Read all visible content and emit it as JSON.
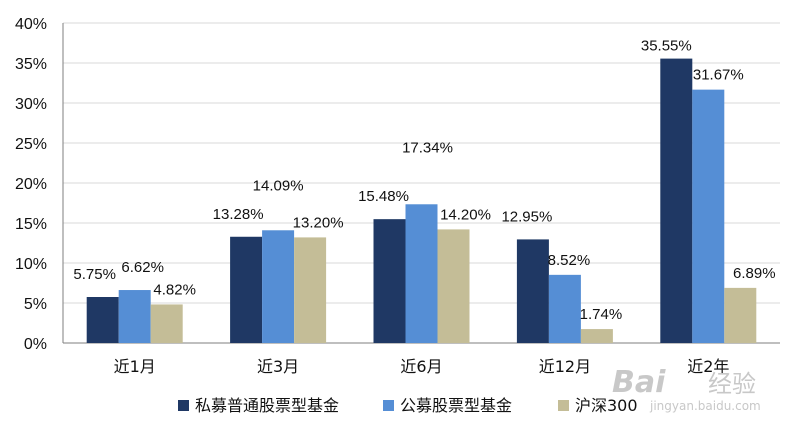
{
  "chart_data": {
    "type": "bar",
    "categories": [
      "近1月",
      "近3月",
      "近6月",
      "近12月",
      "近2年"
    ],
    "series": [
      {
        "name": "私募普通股票型基金",
        "color": "#1f3864",
        "values": [
          5.75,
          13.28,
          15.48,
          12.95,
          35.55
        ],
        "labels": [
          "5.75%",
          "13.28%",
          "15.48%",
          "12.95%",
          "35.55%"
        ]
      },
      {
        "name": "公募股票型基金",
        "color": "#558ed5",
        "values": [
          6.62,
          14.09,
          17.34,
          8.52,
          31.67
        ],
        "labels": [
          "6.62%",
          "14.09%",
          "17.34%",
          "8.52%",
          "31.67%"
        ]
      },
      {
        "name": "沪深300",
        "color": "#c4bd97",
        "values": [
          4.82,
          13.2,
          14.2,
          1.74,
          6.89
        ],
        "labels": [
          "4.82%",
          "13.20%",
          "14.20%",
          "1.74%",
          "6.89%"
        ]
      }
    ],
    "ylim": [
      0,
      40
    ],
    "yticks": [
      "0%",
      "5%",
      "10%",
      "15%",
      "20%",
      "25%",
      "30%",
      "35%",
      "40%"
    ],
    "grid": true,
    "legend_position": "bottom",
    "watermark": "Baidu 经验 jingyan.baidu.com"
  }
}
